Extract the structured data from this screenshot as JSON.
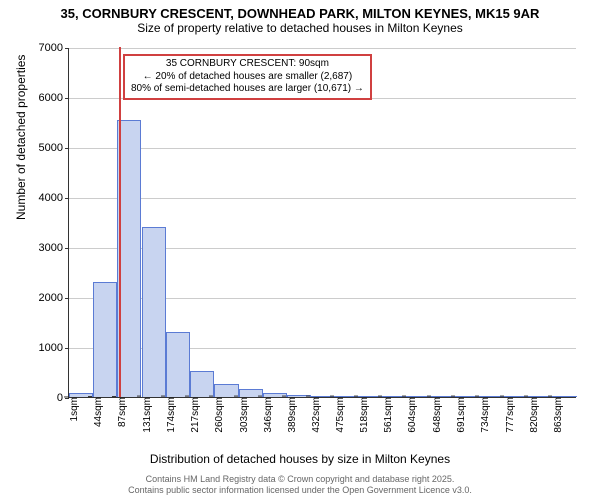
{
  "title": {
    "line1": "35, CORNBURY CRESCENT, DOWNHEAD PARK, MILTON KEYNES, MK15 9AR",
    "line2": "Size of property relative to detached houses in Milton Keynes"
  },
  "chart": {
    "type": "histogram",
    "ylabel": "Number of detached properties",
    "xlabel": "Distribution of detached houses by size in Milton Keynes",
    "ylim": [
      0,
      7000
    ],
    "yticks": [
      0,
      1000,
      2000,
      3000,
      4000,
      5000,
      6000,
      7000
    ],
    "xtick_labels": [
      "1sqm",
      "44sqm",
      "87sqm",
      "131sqm",
      "174sqm",
      "217sqm",
      "260sqm",
      "303sqm",
      "346sqm",
      "389sqm",
      "432sqm",
      "475sqm",
      "518sqm",
      "561sqm",
      "604sqm",
      "648sqm",
      "691sqm",
      "734sqm",
      "777sqm",
      "820sqm",
      "863sqm"
    ],
    "bars": [
      {
        "x": 1,
        "value": 90
      },
      {
        "x": 44,
        "value": 2300
      },
      {
        "x": 87,
        "value": 5550
      },
      {
        "x": 131,
        "value": 3400
      },
      {
        "x": 174,
        "value": 1300
      },
      {
        "x": 217,
        "value": 520
      },
      {
        "x": 260,
        "value": 260
      },
      {
        "x": 303,
        "value": 160
      },
      {
        "x": 346,
        "value": 90
      },
      {
        "x": 389,
        "value": 50
      },
      {
        "x": 432,
        "value": 20
      },
      {
        "x": 475,
        "value": 15
      },
      {
        "x": 518,
        "value": 10
      },
      {
        "x": 561,
        "value": 8
      },
      {
        "x": 604,
        "value": 6
      },
      {
        "x": 648,
        "value": 5
      },
      {
        "x": 691,
        "value": 4
      },
      {
        "x": 734,
        "value": 3
      },
      {
        "x": 777,
        "value": 2
      },
      {
        "x": 820,
        "value": 2
      },
      {
        "x": 863,
        "value": 1
      }
    ],
    "bar_fill": "#c8d4f0",
    "bar_stroke": "#5b7bd4",
    "bar_width_sqm": 43,
    "marker_x": 90,
    "marker_color": "#d04040",
    "grid_color": "#cccccc",
    "background_color": "#ffffff",
    "axis_color": "#333333",
    "label_fontsize": 12,
    "tick_fontsize": 11,
    "title_fontsize": 13
  },
  "annotation": {
    "line1": "35 CORNBURY CRESCENT: 90sqm",
    "line2": "← 20% of detached houses are smaller (2,687)",
    "line3": "80% of semi-detached houses are larger (10,671) →",
    "border_color": "#d04040"
  },
  "footer": {
    "line1": "Contains HM Land Registry data © Crown copyright and database right 2025.",
    "line2": "Contains public sector information licensed under the Open Government Licence v3.0."
  }
}
